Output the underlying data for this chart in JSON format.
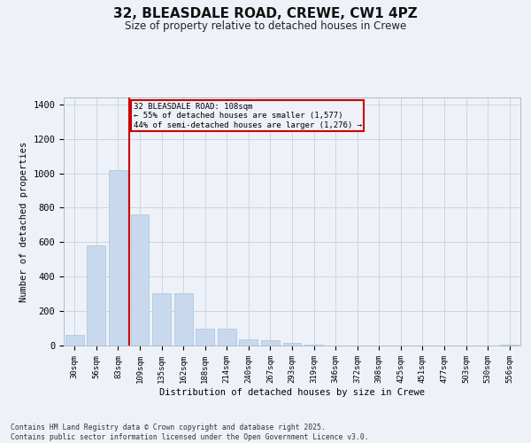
{
  "title_line1": "32, BLEASDALE ROAD, CREWE, CW1 4PZ",
  "title_line2": "Size of property relative to detached houses in Crewe",
  "xlabel": "Distribution of detached houses by size in Crewe",
  "ylabel": "Number of detached properties",
  "bar_color": "#c8d9ee",
  "bar_edge_color": "#a8c0dc",
  "categories": [
    "30sqm",
    "56sqm",
    "83sqm",
    "109sqm",
    "135sqm",
    "162sqm",
    "188sqm",
    "214sqm",
    "240sqm",
    "267sqm",
    "293sqm",
    "319sqm",
    "346sqm",
    "372sqm",
    "398sqm",
    "425sqm",
    "451sqm",
    "477sqm",
    "503sqm",
    "530sqm",
    "556sqm"
  ],
  "values": [
    60,
    580,
    1020,
    760,
    305,
    305,
    100,
    100,
    35,
    30,
    15,
    5,
    0,
    0,
    0,
    0,
    0,
    0,
    0,
    0,
    5
  ],
  "ylim": [
    0,
    1440
  ],
  "yticks": [
    0,
    200,
    400,
    600,
    800,
    1000,
    1200,
    1400
  ],
  "property_bin_index": 3,
  "annotation_title": "32 BLEASDALE ROAD: 108sqm",
  "annotation_line2": "← 55% of detached houses are smaller (1,577)",
  "annotation_line3": "44% of semi-detached houses are larger (1,276) →",
  "annotation_box_color": "#cc0000",
  "vline_color": "#cc0000",
  "grid_color": "#ccd5e0",
  "background_color": "#eef2f8",
  "footnote_line1": "Contains HM Land Registry data © Crown copyright and database right 2025.",
  "footnote_line2": "Contains public sector information licensed under the Open Government Licence v3.0."
}
